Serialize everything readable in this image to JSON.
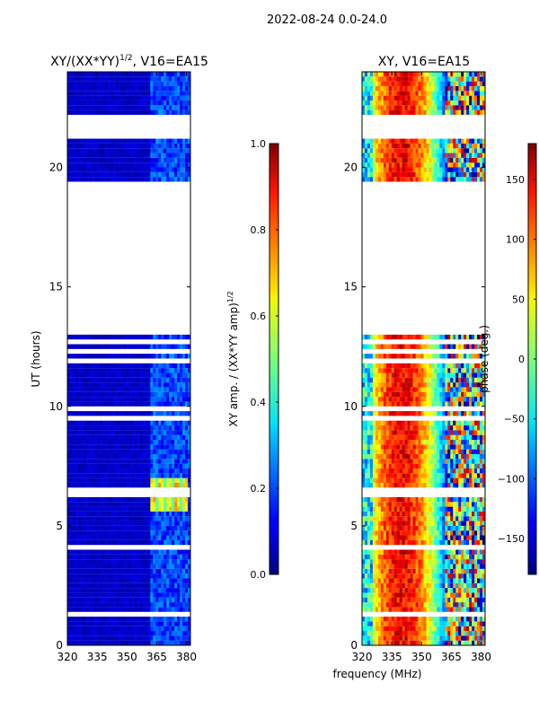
{
  "figure": {
    "suptitle": "2022-08-24 0.0-24.0",
    "shared_xlabel": "frequency (MHz)"
  },
  "chart_data": [
    {
      "type": "heatmap",
      "title_main": "XY/(XX*YY)",
      "title_sup": "1/2",
      "title_tail": ", V16=EA15",
      "xlabel": "",
      "ylabel": "UT (hours)",
      "xlim": [
        320,
        382
      ],
      "ylim": [
        0,
        24
      ],
      "x_ticks": [
        "320",
        "335",
        "350",
        "365",
        "380"
      ],
      "x_tick_values": [
        320,
        335,
        350,
        365,
        380
      ],
      "y_ticks": [
        "0",
        "5",
        "10",
        "15",
        "20"
      ],
      "y_tick_values": [
        0,
        5,
        10,
        15,
        20
      ],
      "colorbar": {
        "label": "XY amp. / (XX*YY amp)",
        "label_sup": "1/2",
        "range": [
          0.0,
          1.0
        ],
        "ticks": [
          "0.0",
          "0.2",
          "0.4",
          "0.6",
          "0.8",
          "1.0"
        ],
        "tick_values": [
          0.0,
          0.2,
          0.4,
          0.6,
          0.8,
          1.0
        ]
      },
      "data_gap_hours": [
        13.0,
        19.4
      ],
      "high_amp_region": {
        "freq": [
          362,
          380
        ],
        "hours": [
          5.5,
          7.0
        ],
        "value": 0.6
      }
    },
    {
      "type": "heatmap",
      "title": "XY, V16=EA15",
      "xlabel": "frequency (MHz)",
      "ylabel": "",
      "xlim": [
        320,
        382
      ],
      "ylim": [
        0,
        24
      ],
      "x_ticks": [
        "320",
        "335",
        "350",
        "365",
        "380"
      ],
      "x_tick_values": [
        320,
        335,
        350,
        365,
        380
      ],
      "y_ticks": [
        "0",
        "5",
        "10",
        "15",
        "20"
      ],
      "y_tick_values": [
        0,
        5,
        10,
        15,
        20
      ],
      "colorbar": {
        "label": "phase (deg.)",
        "range": [
          -180,
          180
        ],
        "ticks": [
          "−150",
          "−100",
          "−50",
          "0",
          "50",
          "100",
          "150"
        ],
        "tick_values": [
          -150,
          -100,
          -50,
          0,
          50,
          100,
          150
        ]
      },
      "data_gap_hours": [
        13.0,
        19.4
      ],
      "phase_center_freq": 340
    }
  ]
}
